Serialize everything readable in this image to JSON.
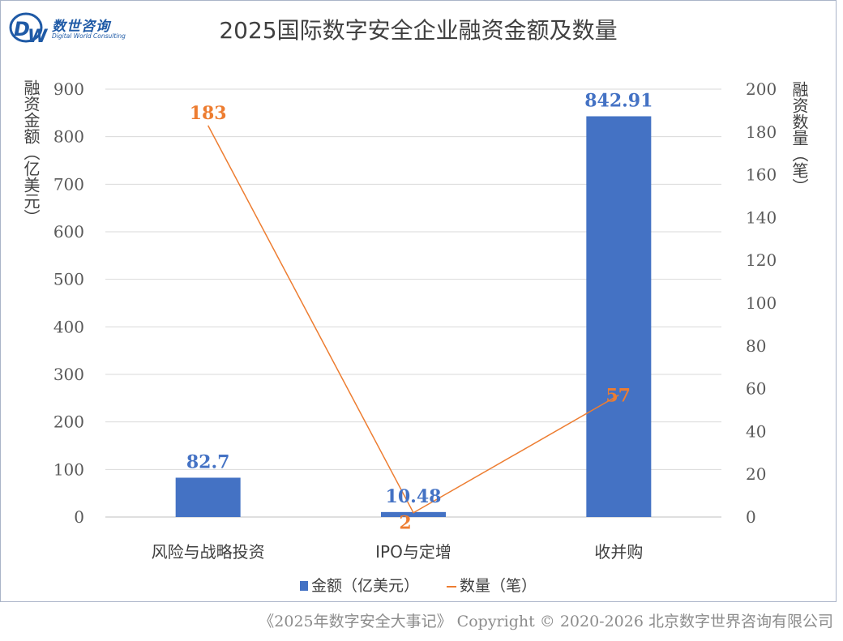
{
  "logo": {
    "text": "数世咨询",
    "subtitle": "Digital World Consulting",
    "mark": "DW"
  },
  "chart_data": {
    "type": "bar+line",
    "title": "2025国际数字安全企业融资金额及数量",
    "categories": [
      "风险与战略投资",
      "IPO与定增",
      "收并购"
    ],
    "series": [
      {
        "name": "金额（亿美元）",
        "type": "bar",
        "axis": "left",
        "values": [
          82.7,
          10.48,
          842.91
        ],
        "labels": [
          "82.7",
          "10.48",
          "842.91"
        ],
        "color": "#4472c4"
      },
      {
        "name": "数量（笔）",
        "type": "line",
        "axis": "right",
        "values": [
          183,
          2,
          57
        ],
        "labels": [
          "183",
          "2",
          "57"
        ],
        "color": "#ed7d31"
      }
    ],
    "ylabel": "融资金额（亿美元）",
    "y2label": "融资数量（笔）",
    "ylim": [
      0,
      900
    ],
    "y2lim": [
      0,
      200
    ],
    "yticks": [
      "0",
      "100",
      "200",
      "300",
      "400",
      "500",
      "600",
      "700",
      "800",
      "900"
    ],
    "y2ticks": [
      "0",
      "20",
      "40",
      "60",
      "80",
      "100",
      "120",
      "140",
      "160",
      "180",
      "200"
    ],
    "grid": true,
    "legend": "bottom"
  },
  "footer": "《2025年数字安全大事记》 Copyright © 2020-2026 北京数字世界咨询有限公司"
}
